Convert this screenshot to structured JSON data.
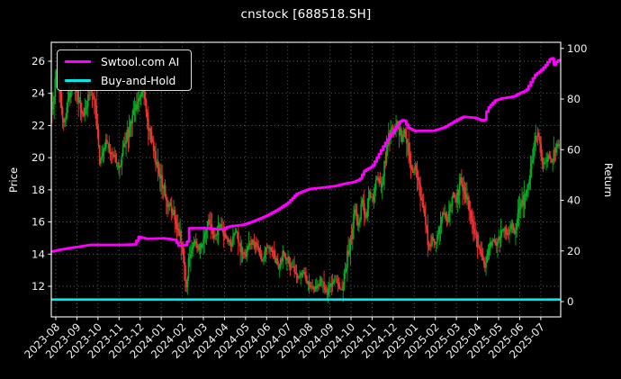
{
  "title": "cnstock [688518.SH]",
  "colors": {
    "background": "#000000",
    "foreground": "#ffffff",
    "grid": "#686868",
    "spine": "#ffffff",
    "ai_line": "#ff00ff",
    "bah_line": "#00e8e8",
    "candle_up": "#00ae22",
    "candle_down": "#f23131"
  },
  "left_axis": {
    "label": "Price",
    "ticks": [
      12,
      14,
      16,
      18,
      20,
      22,
      24,
      26
    ],
    "range": [
      10.1,
      27.1
    ]
  },
  "right_axis": {
    "label": "Return",
    "ticks": [
      0,
      20,
      40,
      60,
      80,
      100
    ],
    "range": [
      -6.1,
      102.5
    ]
  },
  "x_axis": {
    "tick_labels": [
      "2023-08",
      "2023-09",
      "2023-10",
      "2023-11",
      "2023-12",
      "2024-01",
      "2024-02",
      "2024-03",
      "2024-04",
      "2024-05",
      "2024-06",
      "2024-07",
      "2024-08",
      "2024-09",
      "2024-10",
      "2024-11",
      "2024-12",
      "2025-01",
      "2025-02",
      "2025-03",
      "2025-04",
      "2025-05",
      "2025-06",
      "2025-07"
    ],
    "label_rotation_deg": 45
  },
  "legend": {
    "items": [
      {
        "label": "Swtool.com AI",
        "color": "#ff00ff"
      },
      {
        "label": "Buy-and-Hold",
        "color": "#00e8e8"
      }
    ]
  },
  "chart_data": {
    "type": "candlestick+line",
    "title": "cnstock [688518.SH]",
    "x_unit": "months_since_2023-08-01",
    "grid": true,
    "legend_position": "upper-left",
    "xlim": [
      -0.25,
      23.95
    ],
    "series": [
      {
        "name": "Swtool.com AI",
        "type": "line",
        "axis": "right",
        "style": "stepped",
        "points": [
          [
            -0.18,
            19.8
          ],
          [
            0,
            20.2
          ],
          [
            0.5,
            21.0
          ],
          [
            1.0,
            21.6
          ],
          [
            1.6,
            22.4
          ],
          [
            3.0,
            22.4
          ],
          [
            3.75,
            22.6
          ],
          [
            3.9,
            25.6
          ],
          [
            4.3,
            24.8
          ],
          [
            5.1,
            25.0
          ],
          [
            5.65,
            24.4
          ],
          [
            5.8,
            22.0
          ],
          [
            6.2,
            22.4
          ],
          [
            6.3,
            29.0
          ],
          [
            7.2,
            29.0
          ],
          [
            7.9,
            28.4
          ],
          [
            8.15,
            29.6
          ],
          [
            8.9,
            30.4
          ],
          [
            9.5,
            32.2
          ],
          [
            10.0,
            34.0
          ],
          [
            10.55,
            36.5
          ],
          [
            11.0,
            39.0
          ],
          [
            11.4,
            42.5
          ],
          [
            12.0,
            44.5
          ],
          [
            12.6,
            45.0
          ],
          [
            13.2,
            45.6
          ],
          [
            13.7,
            46.6
          ],
          [
            14.1,
            47.2
          ],
          [
            14.4,
            48.2
          ],
          [
            14.6,
            51.5
          ],
          [
            15.0,
            53.5
          ],
          [
            15.3,
            58.0
          ],
          [
            15.6,
            62.5
          ],
          [
            16.0,
            67.5
          ],
          [
            16.35,
            71.5
          ],
          [
            16.5,
            71.8
          ],
          [
            16.7,
            68.6
          ],
          [
            17.0,
            67.4
          ],
          [
            17.9,
            67.5
          ],
          [
            18.4,
            68.8
          ],
          [
            18.9,
            71.2
          ],
          [
            19.3,
            73.0
          ],
          [
            19.85,
            72.6
          ],
          [
            20.3,
            71.2
          ],
          [
            20.45,
            76.0
          ],
          [
            20.8,
            79.4
          ],
          [
            21.1,
            80.2
          ],
          [
            21.7,
            81.0
          ],
          [
            22.0,
            82.4
          ],
          [
            22.3,
            83.4
          ],
          [
            22.5,
            86.4
          ],
          [
            22.7,
            89.4
          ],
          [
            23.0,
            91.4
          ],
          [
            23.2,
            93.2
          ],
          [
            23.5,
            96.6
          ],
          [
            23.62,
            93.6
          ],
          [
            23.75,
            95.0
          ],
          [
            23.88,
            95.4
          ]
        ]
      },
      {
        "name": "Buy-and-Hold",
        "type": "line",
        "axis": "right",
        "style": "flat",
        "points": [
          [
            -0.18,
            0.8
          ],
          [
            23.88,
            0.8
          ]
        ]
      },
      {
        "name": "688518.SH daily OHLC",
        "type": "candlestick",
        "axis": "left",
        "note": "approx. close-price path of ~480 daily candles, read from chart",
        "path_anchors": [
          [
            -0.18,
            23.2
          ],
          [
            0.03,
            25.1
          ],
          [
            0.2,
            24.4
          ],
          [
            0.38,
            21.9
          ],
          [
            0.58,
            23.4
          ],
          [
            0.78,
            24.6
          ],
          [
            1.0,
            24.0
          ],
          [
            1.3,
            22.6
          ],
          [
            1.6,
            24.1
          ],
          [
            1.85,
            23.3
          ],
          [
            2.1,
            19.7
          ],
          [
            2.4,
            21.1
          ],
          [
            2.7,
            20.1
          ],
          [
            3.0,
            19.4
          ],
          [
            3.35,
            21.2
          ],
          [
            3.7,
            22.9
          ],
          [
            4.0,
            23.8
          ],
          [
            4.15,
            24.2
          ],
          [
            4.4,
            21.9
          ],
          [
            4.7,
            20.1
          ],
          [
            5.0,
            18.6
          ],
          [
            5.3,
            17.2
          ],
          [
            5.6,
            16.5
          ],
          [
            5.9,
            15.1
          ],
          [
            6.1,
            13.2
          ],
          [
            6.2,
            11.7
          ],
          [
            6.33,
            14.1
          ],
          [
            6.6,
            14.9
          ],
          [
            6.8,
            14.3
          ],
          [
            7.0,
            15.2
          ],
          [
            7.25,
            16.2
          ],
          [
            7.5,
            15.0
          ],
          [
            7.8,
            15.8
          ],
          [
            8.0,
            15.2
          ],
          [
            8.3,
            14.6
          ],
          [
            8.55,
            15.4
          ],
          [
            8.8,
            14.2
          ],
          [
            9.0,
            14.0
          ],
          [
            9.3,
            14.9
          ],
          [
            9.6,
            14.2
          ],
          [
            9.85,
            13.6
          ],
          [
            10.05,
            14.5
          ],
          [
            10.3,
            14.0
          ],
          [
            10.55,
            13.2
          ],
          [
            10.8,
            14.2
          ],
          [
            11.0,
            13.6
          ],
          [
            11.3,
            13.0
          ],
          [
            11.5,
            12.4
          ],
          [
            11.7,
            12.9
          ],
          [
            12.0,
            12.2
          ],
          [
            12.3,
            11.8
          ],
          [
            12.55,
            12.5
          ],
          [
            12.8,
            11.5
          ],
          [
            13.0,
            11.9
          ],
          [
            13.25,
            12.4
          ],
          [
            13.5,
            11.6
          ],
          [
            13.72,
            12.8
          ],
          [
            13.85,
            14.2
          ],
          [
            14.0,
            15.0
          ],
          [
            14.2,
            16.9
          ],
          [
            14.35,
            15.8
          ],
          [
            14.55,
            17.5
          ],
          [
            14.7,
            16.2
          ],
          [
            14.85,
            17.8
          ],
          [
            15.0,
            17.4
          ],
          [
            15.25,
            19.0
          ],
          [
            15.45,
            18.2
          ],
          [
            15.7,
            20.5
          ],
          [
            15.9,
            22.0
          ],
          [
            16.05,
            21.4
          ],
          [
            16.2,
            22.3
          ],
          [
            16.4,
            21.0
          ],
          [
            16.55,
            21.7
          ],
          [
            16.75,
            20.2
          ],
          [
            16.9,
            19.0
          ],
          [
            17.05,
            19.6
          ],
          [
            17.2,
            18.4
          ],
          [
            17.4,
            17.2
          ],
          [
            17.55,
            16.0
          ],
          [
            17.7,
            14.2
          ],
          [
            17.85,
            15.1
          ],
          [
            18.0,
            14.7
          ],
          [
            18.2,
            15.8
          ],
          [
            18.4,
            16.6
          ],
          [
            18.55,
            16.0
          ],
          [
            18.7,
            17.0
          ],
          [
            18.85,
            17.8
          ],
          [
            19.0,
            17.4
          ],
          [
            19.2,
            18.7
          ],
          [
            19.35,
            18.0
          ],
          [
            19.55,
            17.0
          ],
          [
            19.7,
            16.2
          ],
          [
            19.85,
            15.4
          ],
          [
            20.0,
            14.6
          ],
          [
            20.2,
            13.8
          ],
          [
            20.35,
            13.3
          ],
          [
            20.55,
            14.4
          ],
          [
            20.7,
            14.9
          ],
          [
            20.85,
            14.4
          ],
          [
            21.0,
            15.0
          ],
          [
            21.2,
            15.7
          ],
          [
            21.4,
            15.2
          ],
          [
            21.6,
            15.9
          ],
          [
            21.75,
            15.4
          ],
          [
            21.9,
            16.2
          ],
          [
            22.05,
            16.8
          ],
          [
            22.2,
            17.6
          ],
          [
            22.4,
            18.5
          ],
          [
            22.55,
            19.4
          ],
          [
            22.7,
            20.7
          ],
          [
            22.85,
            21.8
          ],
          [
            23.0,
            20.4
          ],
          [
            23.15,
            19.6
          ],
          [
            23.35,
            20.2
          ],
          [
            23.5,
            19.8
          ],
          [
            23.7,
            20.6
          ],
          [
            23.88,
            21.0
          ]
        ]
      }
    ]
  }
}
